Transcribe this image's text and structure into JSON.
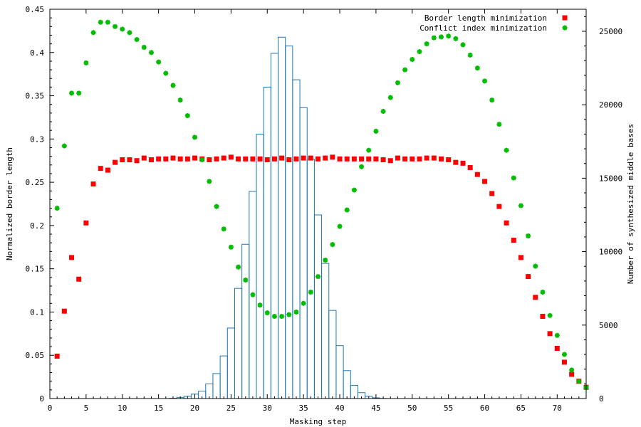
{
  "chart_data": {
    "type": "scatter",
    "xlabel": "Masking step",
    "ylabel": "Normalized border length",
    "y2label": "Number of synthesized middle bases",
    "xlim": [
      0,
      74
    ],
    "ylim": [
      0,
      0.45
    ],
    "y2lim": [
      0,
      26500
    ],
    "x_ticks": [
      0,
      5,
      10,
      15,
      20,
      25,
      30,
      35,
      40,
      45,
      50,
      55,
      60,
      65,
      70
    ],
    "y_ticks": [
      0,
      0.05,
      0.1,
      0.15,
      0.2,
      0.25,
      0.3,
      0.35,
      0.4,
      0.45
    ],
    "y_tick_labels": [
      "0",
      "0.05",
      "0.1",
      "0.15",
      "0.2",
      "0.25",
      "0.3",
      "0.35",
      "0.4",
      "0.45"
    ],
    "y2_ticks": [
      0,
      5000,
      10000,
      15000,
      20000,
      25000
    ],
    "legend_position": "top-right",
    "grid": false,
    "series": [
      {
        "name": "Border length minimization",
        "axis": "left",
        "marker": "square",
        "color": "#ff0000",
        "x": [
          1,
          2,
          3,
          4,
          5,
          6,
          7,
          8,
          9,
          10,
          11,
          12,
          13,
          14,
          15,
          16,
          17,
          18,
          19,
          20,
          21,
          22,
          23,
          24,
          25,
          26,
          27,
          28,
          29,
          30,
          31,
          32,
          33,
          34,
          35,
          36,
          37,
          38,
          39,
          40,
          41,
          42,
          43,
          44,
          45,
          46,
          47,
          48,
          49,
          50,
          51,
          52,
          53,
          54,
          55,
          56,
          57,
          58,
          59,
          60,
          61,
          62,
          63,
          64,
          65,
          66,
          67,
          68,
          69,
          70,
          71,
          72,
          73,
          74
        ],
        "y": [
          0.049,
          0.101,
          0.163,
          0.138,
          0.203,
          0.248,
          0.266,
          0.264,
          0.273,
          0.276,
          0.276,
          0.275,
          0.278,
          0.276,
          0.277,
          0.277,
          0.278,
          0.277,
          0.277,
          0.278,
          0.277,
          0.276,
          0.277,
          0.278,
          0.279,
          0.277,
          0.277,
          0.277,
          0.277,
          0.276,
          0.277,
          0.278,
          0.276,
          0.277,
          0.278,
          0.278,
          0.277,
          0.278,
          0.279,
          0.277,
          0.277,
          0.277,
          0.277,
          0.277,
          0.277,
          0.276,
          0.275,
          0.278,
          0.277,
          0.277,
          0.277,
          0.278,
          0.278,
          0.277,
          0.276,
          0.273,
          0.272,
          0.267,
          0.259,
          0.251,
          0.237,
          0.222,
          0.203,
          0.183,
          0.163,
          0.141,
          0.117,
          0.095,
          0.075,
          0.058,
          0.042,
          0.028,
          0.02,
          0.013
        ]
      },
      {
        "name": "Conflict index minimization",
        "axis": "left",
        "marker": "star",
        "color": "#00bb00",
        "x": [
          1,
          2,
          3,
          4,
          5,
          6,
          7,
          8,
          9,
          10,
          11,
          12,
          13,
          14,
          15,
          16,
          17,
          18,
          19,
          20,
          21,
          22,
          23,
          24,
          25,
          26,
          27,
          28,
          29,
          30,
          31,
          32,
          33,
          34,
          35,
          36,
          37,
          38,
          39,
          40,
          41,
          42,
          43,
          44,
          45,
          46,
          47,
          48,
          49,
          50,
          51,
          52,
          53,
          54,
          55,
          56,
          57,
          58,
          59,
          60,
          61,
          62,
          63,
          64,
          65,
          66,
          67,
          68,
          69,
          70,
          71,
          72,
          73,
          74
        ],
        "y": [
          0.22,
          0.292,
          0.353,
          0.353,
          0.388,
          0.423,
          0.435,
          0.435,
          0.43,
          0.427,
          0.423,
          0.415,
          0.406,
          0.4,
          0.389,
          0.376,
          0.362,
          0.345,
          0.327,
          0.302,
          0.276,
          0.251,
          0.222,
          0.196,
          0.175,
          0.152,
          0.137,
          0.12,
          0.108,
          0.099,
          0.095,
          0.095,
          0.097,
          0.1,
          0.11,
          0.123,
          0.141,
          0.16,
          0.178,
          0.199,
          0.218,
          0.241,
          0.268,
          0.287,
          0.309,
          0.332,
          0.348,
          0.365,
          0.38,
          0.392,
          0.401,
          0.41,
          0.417,
          0.418,
          0.419,
          0.416,
          0.409,
          0.397,
          0.382,
          0.367,
          0.345,
          0.317,
          0.287,
          0.255,
          0.223,
          0.188,
          0.153,
          0.123,
          0.096,
          0.073,
          0.051,
          0.033,
          0.02,
          0.013
        ]
      },
      {
        "name": "",
        "axis": "right",
        "type": "histogram",
        "color": "#1f77b4",
        "x": [
          17,
          18,
          19,
          20,
          21,
          22,
          23,
          24,
          25,
          26,
          27,
          28,
          29,
          30,
          31,
          32,
          33,
          34,
          35,
          36,
          37,
          38,
          39,
          40,
          41,
          42,
          43,
          44,
          45,
          46
        ],
        "y": [
          20,
          80,
          150,
          300,
          500,
          1000,
          1700,
          2900,
          4800,
          7500,
          10500,
          14100,
          18000,
          21200,
          23500,
          24600,
          24000,
          21700,
          19800,
          16300,
          12500,
          9200,
          6000,
          3600,
          1900,
          900,
          400,
          150,
          50,
          10
        ]
      }
    ]
  }
}
